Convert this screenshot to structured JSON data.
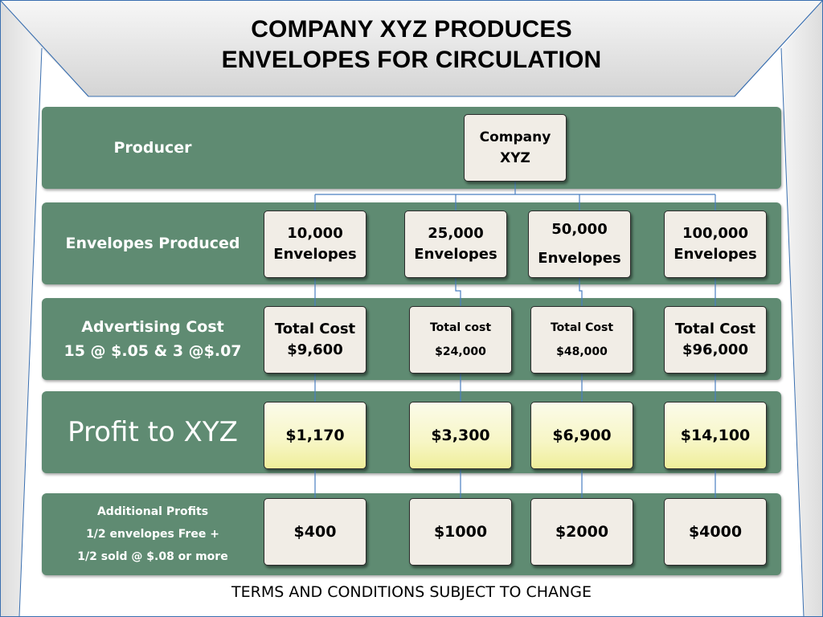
{
  "title": {
    "line1": "COMPANY XYZ PRODUCES",
    "line2": "ENVELOPES FOR CIRCULATION"
  },
  "rows": {
    "producer": {
      "label": "Producer",
      "node": [
        "Company",
        "XYZ"
      ]
    },
    "envelopes": {
      "label": "Envelopes Produced",
      "nodes": [
        [
          "10,000",
          "Envelopes"
        ],
        [
          "25,000",
          "Envelopes"
        ],
        [
          "50,000",
          "Envelopes"
        ],
        [
          "100,000",
          "Envelopes"
        ]
      ]
    },
    "advertising": {
      "label_line1": "Advertising Cost",
      "label_line2": "15 @ $.05 & 3 @$.07",
      "nodes": [
        [
          "Total Cost",
          "$9,600"
        ],
        [
          "Total cost",
          "$24,000"
        ],
        [
          "Total Cost",
          "$48,000"
        ],
        [
          "Total Cost",
          "$96,000"
        ]
      ]
    },
    "profit": {
      "label": "Profit to XYZ",
      "nodes": [
        "$1,170",
        "$3,300",
        "$6,900",
        "$14,100"
      ]
    },
    "additional": {
      "label_line1": "Additional Profits",
      "label_line2": "1/2 envelopes Free +",
      "label_line3": "1/2 sold @ $.08 or more",
      "nodes": [
        "$400",
        "$1000",
        "$2000",
        "$4000"
      ]
    }
  },
  "footer": "TERMS AND CONDITIONS SUBJECT TO CHANGE",
  "colors": {
    "band": "#5f8b72",
    "node_fill": "#f1ede6",
    "profit_fill": "#f7f6c5",
    "connector": "#4a7fc1",
    "frame_line": "#3a6fb0"
  }
}
